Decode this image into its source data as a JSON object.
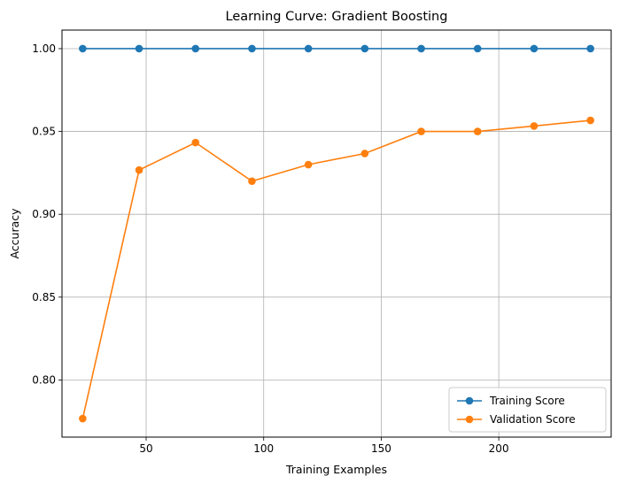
{
  "chart_data": {
    "type": "line",
    "title": "Learning Curve: Gradient Boosting",
    "xlabel": "Training Examples",
    "ylabel": "Accuracy",
    "x": [
      23,
      47,
      71,
      95,
      119,
      143,
      167,
      191,
      215,
      239
    ],
    "series": [
      {
        "name": "Training Score",
        "color": "#1f77b4",
        "values": [
          1.0,
          1.0,
          1.0,
          1.0,
          1.0,
          1.0,
          1.0,
          1.0,
          1.0,
          1.0
        ]
      },
      {
        "name": "Validation Score",
        "color": "#ff7f0e",
        "values": [
          0.7767,
          0.9267,
          0.9433,
          0.92,
          0.93,
          0.9367,
          0.95,
          0.95,
          0.9533,
          0.9567
        ]
      }
    ],
    "xlim": [
      14.2,
      247.8
    ],
    "ylim": [
      0.7655,
      1.0112
    ],
    "xticks": [
      50,
      100,
      150,
      200
    ],
    "xtick_labels": [
      "50",
      "100",
      "150",
      "200"
    ],
    "yticks": [
      0.8,
      0.85,
      0.9,
      0.95,
      1.0
    ],
    "ytick_labels": [
      "0.80",
      "0.85",
      "0.90",
      "0.95",
      "1.00"
    ],
    "grid": true,
    "legend_position": "lower-right"
  }
}
